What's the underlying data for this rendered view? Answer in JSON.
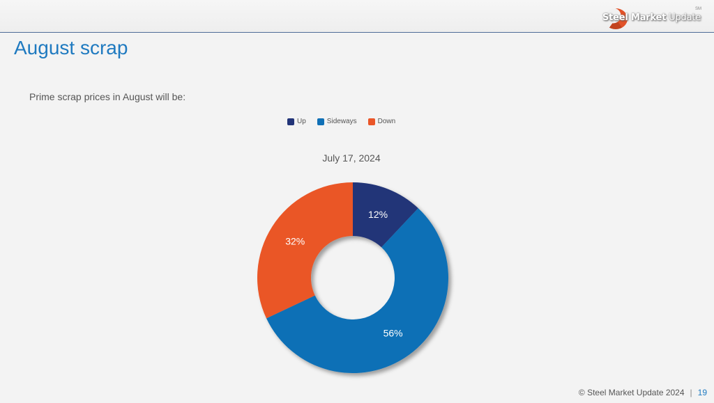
{
  "header": {
    "brand_bold": "Steel Market",
    "brand_light": " Update",
    "brand_mark": "SM"
  },
  "page": {
    "title": "August scrap",
    "subtitle": "Prime scrap prices in August will be:"
  },
  "chart_data": {
    "type": "pie",
    "style": "donut",
    "title": "July 17, 2024",
    "legend_position": "top",
    "series": [
      {
        "name": "Up",
        "value": 12,
        "label": "12%",
        "color": "#223478"
      },
      {
        "name": "Sideways",
        "value": 56,
        "label": "56%",
        "color": "#1070b6"
      },
      {
        "name": "Down",
        "value": 32,
        "label": "32%",
        "color": "#ea5628"
      }
    ]
  },
  "footer": {
    "copyright": "© Steel Market Update 2024",
    "separator": "|",
    "page_number": "19"
  }
}
